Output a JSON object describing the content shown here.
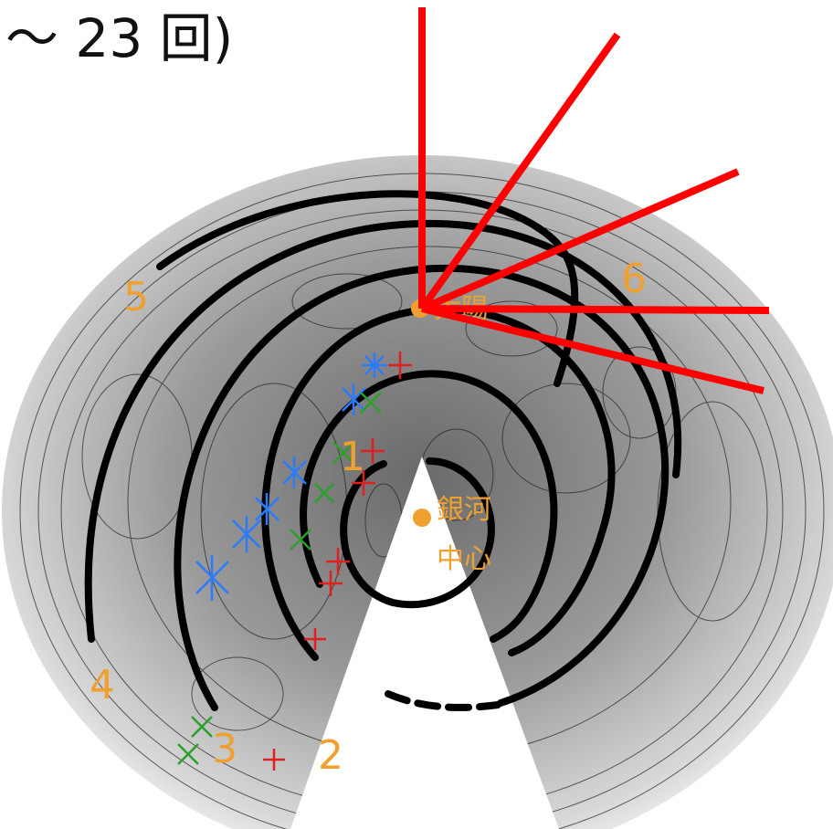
{
  "header": {
    "text": "～ 23 回)"
  },
  "figure": {
    "arm_labels": [
      "1",
      "2",
      "3",
      "4",
      "5",
      "6"
    ],
    "sun_label": "太陽",
    "center_label": [
      "銀河",
      "中心"
    ]
  }
}
